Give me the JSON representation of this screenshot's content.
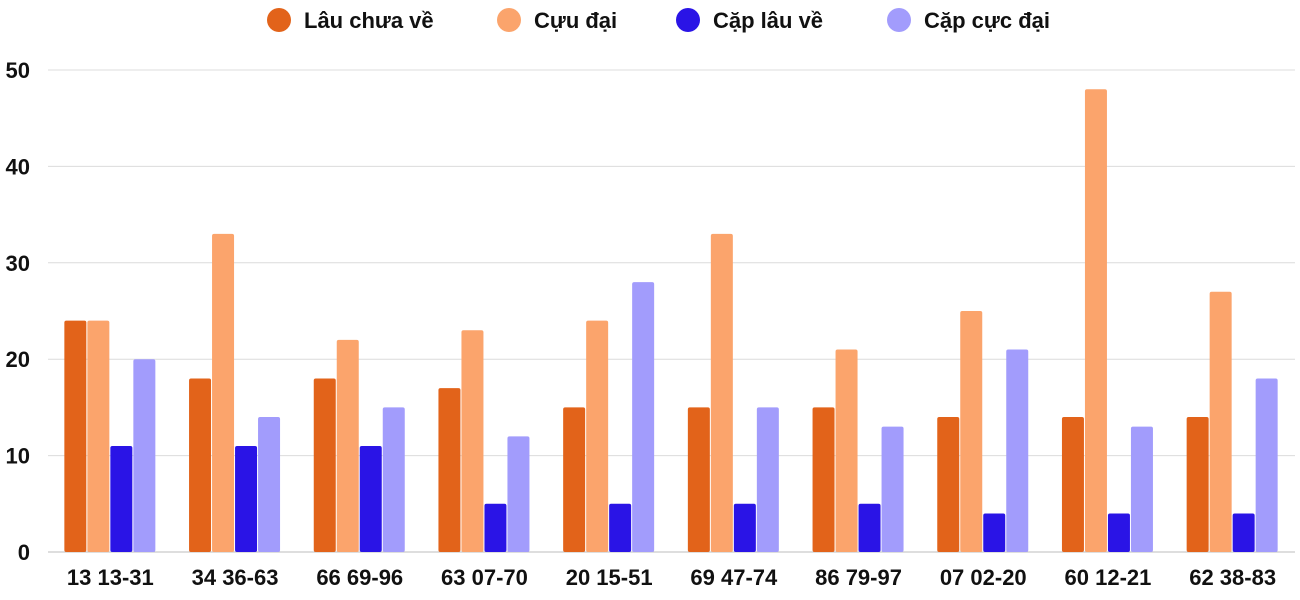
{
  "chart_data": {
    "type": "bar",
    "categories": [
      "13 13-31",
      "34 36-63",
      "66 69-96",
      "63 07-70",
      "20 15-51",
      "69 47-74",
      "86 79-97",
      "07 02-20",
      "60 12-21",
      "62 38-83"
    ],
    "series": [
      {
        "name": "Lâu chưa về",
        "color": "#e2631a",
        "values": [
          24,
          18,
          18,
          17,
          15,
          15,
          15,
          14,
          14,
          14
        ]
      },
      {
        "name": "Cựu đại",
        "color": "#fba46c",
        "values": [
          24,
          33,
          22,
          23,
          24,
          33,
          21,
          25,
          48,
          27
        ]
      },
      {
        "name": "Cặp lâu về",
        "color": "#2a14e6",
        "values": [
          11,
          11,
          11,
          5,
          5,
          5,
          5,
          4,
          4,
          4
        ]
      },
      {
        "name": "Cặp cực đại",
        "color": "#a29cfc",
        "values": [
          20,
          14,
          15,
          12,
          28,
          15,
          13,
          21,
          13,
          18
        ]
      }
    ],
    "yticks": [
      "0",
      "10",
      "20",
      "30",
      "40",
      "50"
    ],
    "ylim": [
      0,
      50
    ],
    "grid": true,
    "legend_position": "top-center"
  }
}
